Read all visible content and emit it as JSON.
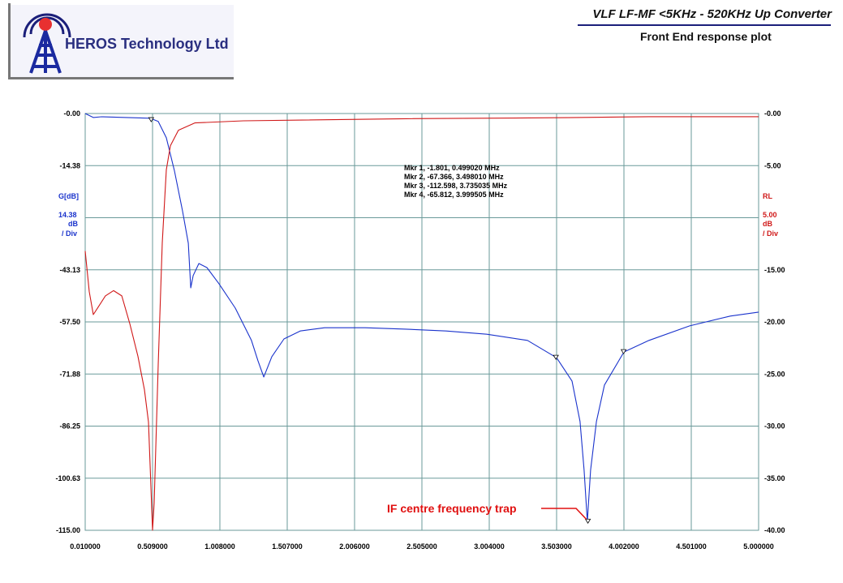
{
  "header": {
    "logo_text": "HEROS Technology Ltd",
    "title": "VLF LF-MF <5KHz - 520KHz Up Converter",
    "subtitle": "Front End response plot"
  },
  "chart_data": {
    "type": "line",
    "title": "Front End response plot",
    "x_ticks": [
      "0.010000",
      "0.509000",
      "1.008000",
      "1.507000",
      "2.006000",
      "2.505000",
      "3.004000",
      "3.503000",
      "4.002000",
      "4.501000",
      "5.000000"
    ],
    "xlim": [
      0.01,
      5.0
    ],
    "y_left": {
      "label": "G[dB]",
      "scale_value": "14.38",
      "scale_unit": "dB",
      "scale_per": "/ Div",
      "ylim": [
        -115,
        0
      ],
      "ticks": [
        "-0.00",
        "-14.38",
        "-28.75",
        "-43.13",
        "-57.50",
        "-71.88",
        "-86.25",
        "-100.63",
        "-115.00"
      ],
      "color": "#1a33cc"
    },
    "y_right": {
      "label": "RL",
      "scale_value": "5.00",
      "scale_unit": "dB",
      "scale_per": "/ Div",
      "ylim": [
        -40,
        0
      ],
      "ticks": [
        "-0.00",
        "-5.00",
        "-10.00",
        "-15.00",
        "-20.00",
        "-25.00",
        "-30.00",
        "-35.00",
        "-40.00"
      ],
      "color": "#d01818"
    },
    "grid": true,
    "series": [
      {
        "axis": "left",
        "color": "#1a33cc",
        "x": [
          0.01,
          0.07,
          0.13,
          0.491,
          0.551,
          0.611,
          0.671,
          0.731,
          0.774,
          0.792,
          0.81,
          0.852,
          0.912,
          1.002,
          1.122,
          1.242,
          1.29,
          1.333,
          1.393,
          1.483,
          1.603,
          1.784,
          2.084,
          2.385,
          2.685,
          2.986,
          3.287,
          3.503,
          3.617,
          3.677,
          3.707,
          3.731,
          3.755,
          3.798,
          3.858,
          4.002,
          4.188,
          4.489,
          4.79,
          5.0
        ],
        "y": [
          0,
          -1.1,
          -0.9,
          -1.3,
          -2.2,
          -6.7,
          -15.7,
          -26.8,
          -35.8,
          -48.1,
          -44.7,
          -41.4,
          -42.5,
          -47.0,
          -53.7,
          -62.6,
          -68.2,
          -72.7,
          -67.1,
          -62.2,
          -60.0,
          -59.1,
          -59.1,
          -59.5,
          -60.0,
          -60.9,
          -62.6,
          -67.4,
          -73.8,
          -85.0,
          -98.4,
          -112.6,
          -98.4,
          -85.0,
          -74.9,
          -65.8,
          -62.6,
          -58.6,
          -55.9,
          -54.8
        ]
      },
      {
        "axis": "right",
        "color": "#d01818",
        "x": [
          0.01,
          0.04,
          0.07,
          0.1,
          0.16,
          0.22,
          0.281,
          0.341,
          0.401,
          0.449,
          0.479,
          0.497,
          0.509,
          0.521,
          0.551,
          0.581,
          0.611,
          0.641,
          0.701,
          0.822,
          1.182,
          2.385,
          3.587,
          4.188,
          5.0
        ],
        "y": [
          -13.2,
          -17.1,
          -19.3,
          -18.7,
          -17.5,
          -17.0,
          -17.5,
          -20.2,
          -23.3,
          -26.5,
          -29.6,
          -35.8,
          -40,
          -37.4,
          -24.1,
          -12.4,
          -5.4,
          -3.1,
          -1.6,
          -0.9,
          -0.7,
          -0.5,
          -0.4,
          -0.3,
          -0.3
        ]
      }
    ],
    "markers": [
      {
        "label": "Mkr 1, -1.801, 0.499020 MHz",
        "x": 0.49902,
        "y": -1.801
      },
      {
        "label": "Mkr 2, -67.366, 3.498010 MHz",
        "x": 3.49801,
        "y": -67.366
      },
      {
        "label": "Mkr 3, -112.598, 3.735035 MHz",
        "x": 3.735035,
        "y": -112.598
      },
      {
        "label": "Mkr 4, -65.812, 3.999505 MHz",
        "x": 3.999505,
        "y": -65.812
      }
    ],
    "annotation": {
      "text": "IF centre frequency trap",
      "marker": 3
    }
  }
}
